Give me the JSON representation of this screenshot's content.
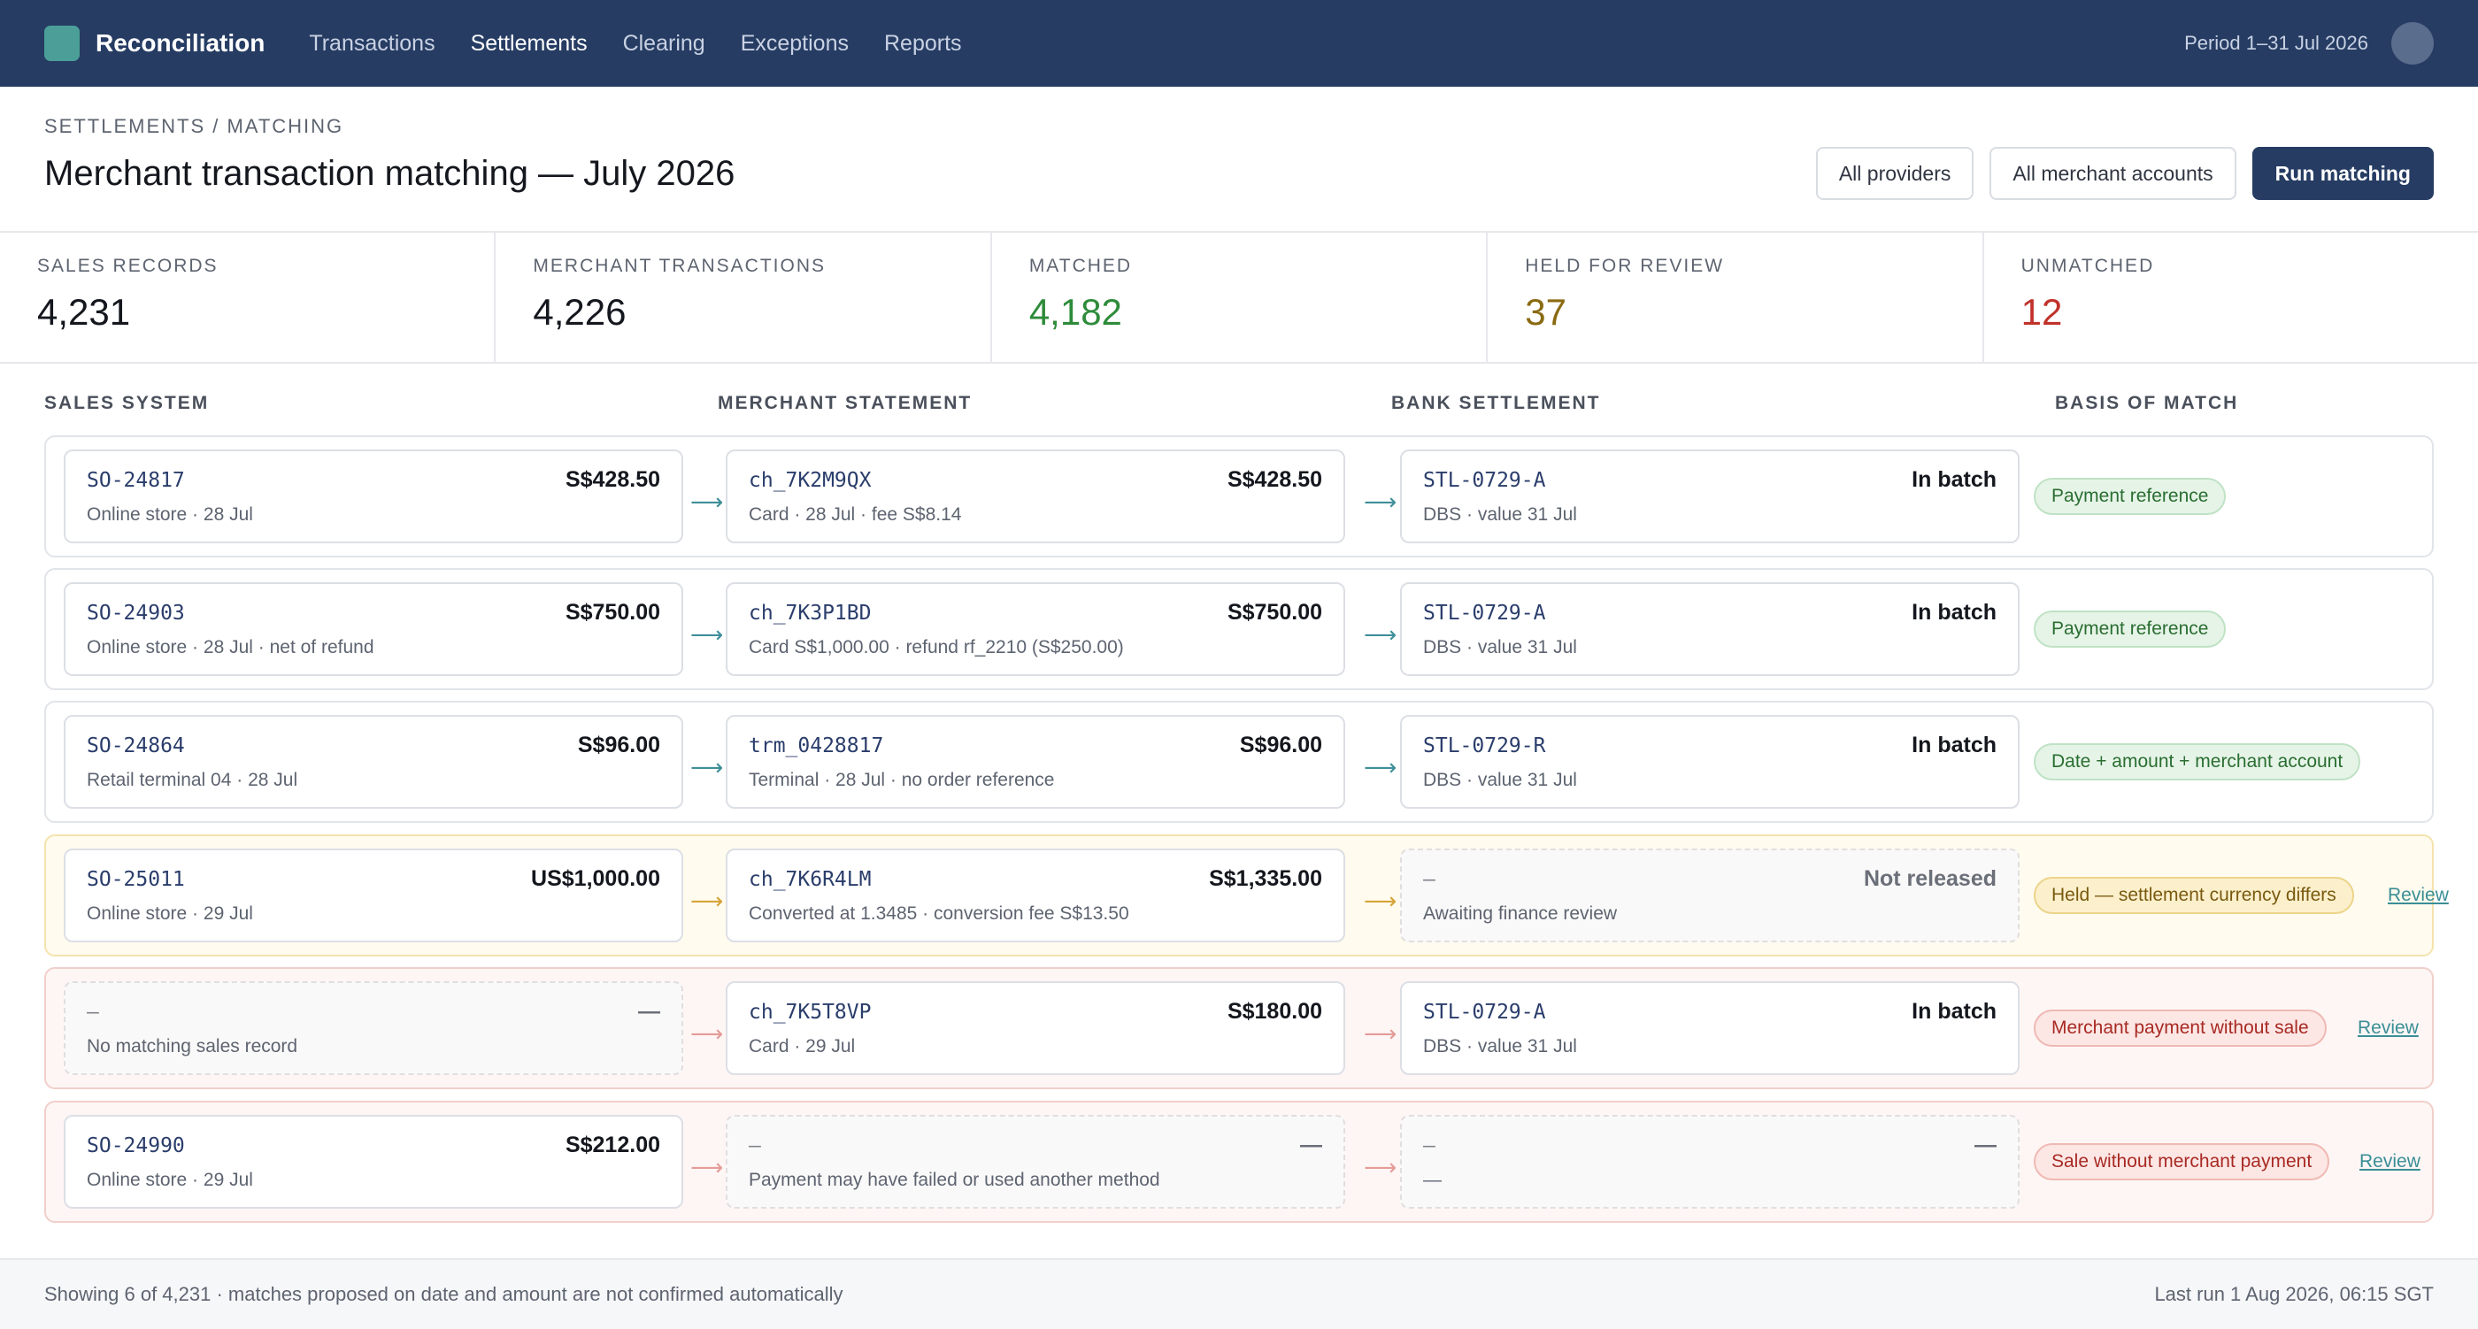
{
  "app": {
    "name": "Reconciliation"
  },
  "nav": {
    "items": [
      {
        "label": "Transactions"
      },
      {
        "label": "Settlements"
      },
      {
        "label": "Clearing"
      },
      {
        "label": "Exceptions"
      },
      {
        "label": "Reports"
      }
    ],
    "active": "Settlements",
    "period": "Period 1–31 Jul 2026"
  },
  "header": {
    "breadcrumb": "SETTLEMENTS / MATCHING",
    "title": "Merchant transaction matching — July 2026",
    "filters": {
      "providers": "All providers",
      "accounts": "All merchant accounts"
    },
    "run_label": "Run matching"
  },
  "stats": [
    {
      "label": "SALES RECORDS",
      "value": "4,231",
      "color": "#14171d"
    },
    {
      "label": "MERCHANT TRANSACTIONS",
      "value": "4,226",
      "color": "#14171d"
    },
    {
      "label": "MATCHED",
      "value": "4,182",
      "color": "#2e8b3a"
    },
    {
      "label": "HELD FOR REVIEW",
      "value": "37",
      "color": "#8a6a12"
    },
    {
      "label": "UNMATCHED",
      "value": "12",
      "color": "#c0322b"
    }
  ],
  "columns": {
    "sales": "SALES SYSTEM",
    "merchant": "MERCHANT STATEMENT",
    "bank": "BANK SETTLEMENT",
    "basis": "BASIS OF MATCH"
  },
  "rows": [
    {
      "sales": {
        "id": "SO-24817",
        "amount": "S$428.50",
        "sub": "Online store · 28 Jul"
      },
      "merchant": {
        "id": "ch_7K2M9QX",
        "amount": "S$428.50",
        "sub": "Card · 28 Jul · fee S$8.14"
      },
      "bank": {
        "id": "STL-0729-A",
        "amount": "In batch",
        "sub": "DBS · value 31 Jul"
      },
      "basis": "Payment reference"
    },
    {
      "sales": {
        "id": "SO-24903",
        "amount": "S$750.00",
        "sub": "Online store · 28 Jul · net of refund"
      },
      "merchant": {
        "id": "ch_7K3P1BD",
        "amount": "S$750.00",
        "sub": "Card S$1,000.00 · refund rf_2210 (S$250.00)"
      },
      "bank": {
        "id": "STL-0729-A",
        "amount": "In batch",
        "sub": "DBS · value 31 Jul"
      },
      "basis": "Payment reference"
    },
    {
      "sales": {
        "id": "SO-24864",
        "amount": "S$96.00",
        "sub": "Retail terminal 04 · 28 Jul"
      },
      "merchant": {
        "id": "trm_0428817",
        "amount": "S$96.00",
        "sub": "Terminal · 28 Jul · no order reference"
      },
      "bank": {
        "id": "STL-0729-R",
        "amount": "In batch",
        "sub": "DBS · value 31 Jul"
      },
      "basis": "Date + amount + merchant account"
    },
    {
      "sales": {
        "id": "SO-25011",
        "amount": "US$1,000.00",
        "sub": "Online store · 29 Jul"
      },
      "merchant": {
        "id": "ch_7K6R4LM",
        "amount": "S$1,335.00",
        "sub": "Converted at 1.3485 · conversion fee S$13.50"
      },
      "bank": {
        "id": "–",
        "amount": "Not released",
        "sub": "Awaiting finance review"
      },
      "basis": "Held — settlement currency differs",
      "review": "Review"
    },
    {
      "sales": {
        "id": "–",
        "amount": "—",
        "sub": "No matching sales record"
      },
      "merchant": {
        "id": "ch_7K5T8VP",
        "amount": "S$180.00",
        "sub": "Card · 29 Jul"
      },
      "bank": {
        "id": "STL-0729-A",
        "amount": "In batch",
        "sub": "DBS · value 31 Jul"
      },
      "basis": "Merchant payment without sale",
      "review": "Review"
    },
    {
      "sales": {
        "id": "SO-24990",
        "amount": "S$212.00",
        "sub": "Online store · 29 Jul"
      },
      "merchant": {
        "id": "–",
        "amount": "—",
        "sub": "Payment may have failed or used another method"
      },
      "bank": {
        "id": "–",
        "amount": "—",
        "sub": "—"
      },
      "basis": "Sale without merchant payment",
      "review": "Review"
    }
  ],
  "footer": {
    "left": "Showing 6 of 4,231 · matches proposed on date and amount are not confirmed automatically",
    "right": "Last run 1 Aug 2026, 06:15 SGT"
  }
}
